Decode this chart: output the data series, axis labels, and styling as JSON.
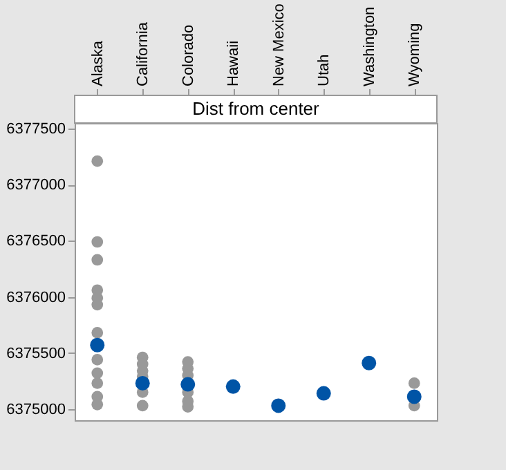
{
  "chart_data": {
    "type": "scatter",
    "title": "Dist from center",
    "categories": [
      "Alaska",
      "California",
      "Colorado",
      "Hawaii",
      "New Mexico",
      "Utah",
      "Washington",
      "Wyoming"
    ],
    "series": [
      {
        "color": "#999999",
        "x": [
          "Alaska",
          "Alaska",
          "Alaska",
          "Alaska",
          "Alaska",
          "Alaska",
          "Alaska",
          "Alaska",
          "Alaska",
          "Alaska",
          "Alaska",
          "Alaska",
          "California",
          "California",
          "California",
          "California",
          "California",
          "California",
          "California",
          "Colorado",
          "Colorado",
          "Colorado",
          "Colorado",
          "Colorado",
          "Colorado",
          "Wyoming",
          "Wyoming"
        ],
        "values": [
          6377210,
          6376490,
          6376330,
          6376060,
          6375990,
          6375930,
          6375680,
          6375440,
          6375320,
          6375230,
          6375110,
          6375040,
          6375460,
          6375400,
          6375340,
          6375290,
          null,
          6375150,
          6375030,
          6375420,
          6375360,
          6375300,
          6375150,
          6375070,
          6375020,
          6375230,
          6375030
        ]
      },
      {
        "color": "#0054a6",
        "values": [
          6375570,
          6375230,
          6375220,
          6375200,
          6375030,
          6375140,
          6375410,
          6375110
        ]
      }
    ],
    "ylim": [
      6374900,
      6377550
    ],
    "yticks": [
      6375000,
      6375500,
      6376000,
      6376500,
      6377000,
      6377500
    ],
    "grid": false,
    "marker": "circle"
  }
}
